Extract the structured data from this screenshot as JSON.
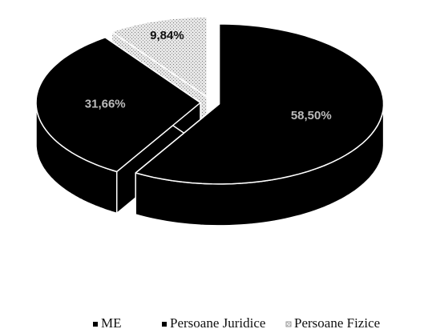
{
  "chart_data": {
    "type": "pie",
    "categories": [
      "ME",
      "Persoane Juridice",
      "Persoane Fizice"
    ],
    "values": [
      58.5,
      31.66,
      9.84
    ],
    "value_labels": [
      "58,50%",
      "31,66%",
      "9,84%"
    ],
    "colors": [
      "#000000",
      "#000000",
      "#d9d9d9"
    ],
    "legend": "bottom"
  }
}
